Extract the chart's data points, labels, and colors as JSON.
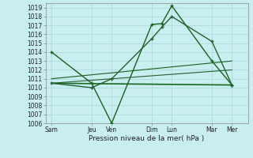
{
  "xlabel": "Pression niveau de la mer( hPa )",
  "xtick_labels": [
    "Sam",
    "Jeu",
    "Ven",
    "Dim",
    "Lun",
    "Mar",
    "Mer"
  ],
  "xtick_pos": [
    0,
    2,
    3,
    5,
    6,
    8,
    9
  ],
  "ylim": [
    1006,
    1019.5
  ],
  "xlim": [
    -0.3,
    9.8
  ],
  "yticks": [
    1006,
    1007,
    1008,
    1009,
    1010,
    1011,
    1012,
    1013,
    1014,
    1015,
    1016,
    1017,
    1018,
    1019
  ],
  "background_color": "#c8eef0",
  "grid_color": "#a8d8d8",
  "lines": [
    {
      "comment": "volatile line: Sam=1014, Jeu=1010.5, Ven=1006, Dim=1017.1, Dim+mid=1017.2, Lun=1019.2, Mar=1013, Mer=1010.3",
      "x": [
        0,
        2,
        3,
        5,
        5.5,
        6,
        8,
        9
      ],
      "y": [
        1014.0,
        1010.5,
        1006.0,
        1017.1,
        1017.2,
        1019.2,
        1013.0,
        1010.3
      ],
      "color": "#1a6020",
      "lw": 1.0,
      "marker": true
    },
    {
      "comment": "second line: Sam~1010.5, Jeu~1010, Ven~1011, Dim~1015.5, mid~1017, Lun~1018, Mar~1015, Mer~1010.3",
      "x": [
        0,
        2,
        3,
        5,
        5.5,
        6,
        8,
        9
      ],
      "y": [
        1010.5,
        1010.0,
        1011.0,
        1015.5,
        1016.8,
        1018.0,
        1015.2,
        1010.3
      ],
      "color": "#256030",
      "lw": 1.0,
      "marker": true
    },
    {
      "x": [
        0,
        9
      ],
      "y": [
        1011.0,
        1013.0
      ],
      "color": "#1a6020",
      "lw": 0.8,
      "marker": false
    },
    {
      "x": [
        0,
        9
      ],
      "y": [
        1010.5,
        1012.0
      ],
      "color": "#256030",
      "lw": 0.8,
      "marker": false
    },
    {
      "x": [
        0,
        9
      ],
      "y": [
        1010.5,
        1010.3
      ],
      "color": "#1a6820",
      "lw": 1.2,
      "marker": false
    }
  ]
}
